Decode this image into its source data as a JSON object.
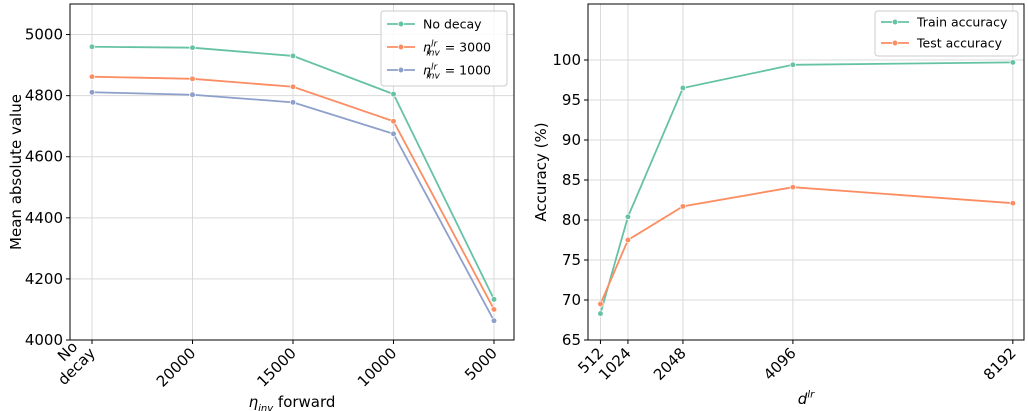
{
  "chart_data": [
    {
      "type": "line",
      "categories": [
        "No\ndecay",
        "20000",
        "15000",
        "10000",
        "5000"
      ],
      "xlabel": {
        "base": "η",
        "sub": "inv",
        "rest": " forward"
      },
      "ylabel": "Mean absolute value",
      "ylim": [
        4000,
        5100
      ],
      "yticks": [
        4000,
        4200,
        4400,
        4600,
        4800,
        5000
      ],
      "grid": true,
      "legend_position": "top-right",
      "series": [
        {
          "name": "No decay",
          "legend": {
            "plain": "No decay"
          },
          "color": "#66c2a5",
          "values": [
            4960,
            4957,
            4930,
            4805,
            4133
          ]
        },
        {
          "name": "η^lr_inv = 3000",
          "legend": {
            "base": "η",
            "sup": "lr",
            "sub": "inv",
            "rest": " = 3000"
          },
          "color": "#fc8d62",
          "values": [
            4862,
            4855,
            4829,
            4716,
            4100
          ]
        },
        {
          "name": "η^lr_inv = 1000",
          "legend": {
            "base": "η",
            "sup": "lr",
            "sub": "inv",
            "rest": " = 1000"
          },
          "color": "#8da0cb",
          "values": [
            4811,
            4803,
            4778,
            4675,
            4063
          ]
        }
      ]
    },
    {
      "type": "line",
      "x": [
        512,
        1024,
        2048,
        4096,
        8192
      ],
      "xticks": [
        "512",
        "1024",
        "2048",
        "4096",
        "8192"
      ],
      "xlabel": {
        "base": "d",
        "sup": "lr"
      },
      "ylabel": "Accuracy (%)",
      "xlim": [
        280,
        8400
      ],
      "ylim": [
        65,
        107
      ],
      "yticks": [
        65,
        70,
        75,
        80,
        85,
        90,
        95,
        100
      ],
      "grid": true,
      "legend_position": "top-right",
      "series": [
        {
          "name": "Train accuracy",
          "color": "#66c2a5",
          "values": [
            68.3,
            80.4,
            96.5,
            99.4,
            99.7
          ]
        },
        {
          "name": "Test accuracy",
          "color": "#fc8d62",
          "values": [
            69.5,
            77.5,
            81.7,
            84.1,
            82.1
          ]
        }
      ]
    }
  ]
}
